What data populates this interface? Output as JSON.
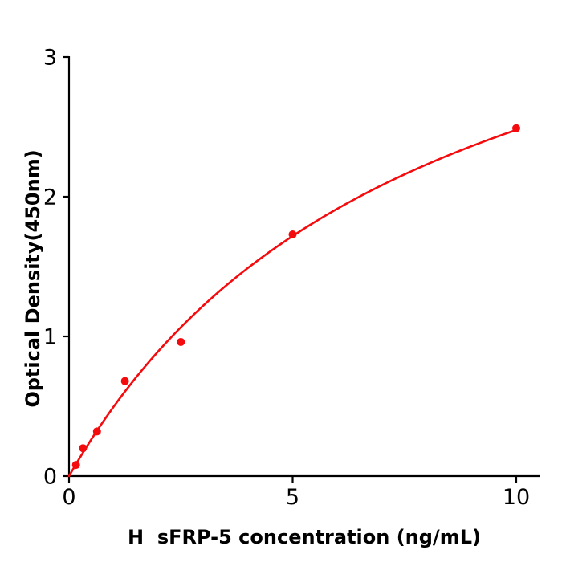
{
  "chart_data": {
    "type": "scatter",
    "title": "",
    "xlabel": "H  sFRP-5 concentration (ng/mL)",
    "ylabel": "Optical Density(450nm)",
    "x": [
      0.156,
      0.312,
      0.625,
      1.25,
      2.5,
      5,
      10
    ],
    "y": [
      0.08,
      0.2,
      0.32,
      0.68,
      0.96,
      1.73,
      2.49
    ],
    "xticks": [
      0,
      5,
      10
    ],
    "yticks": [
      0,
      1,
      2,
      3
    ],
    "xlim": [
      0,
      10.5
    ],
    "ylim": [
      0,
      3
    ],
    "grid": false,
    "legend": null,
    "fit_curve": {
      "type": "saturation-binding",
      "formula": "y = a*x/(k+x)",
      "a": 4.44,
      "k": 7.92,
      "x_range": [
        0,
        10
      ]
    },
    "point_color": "#f40b0e",
    "line_color": "#f40b0e",
    "axis_color": "#000000",
    "text_color": "#000000",
    "background_color": "#ffffff"
  }
}
